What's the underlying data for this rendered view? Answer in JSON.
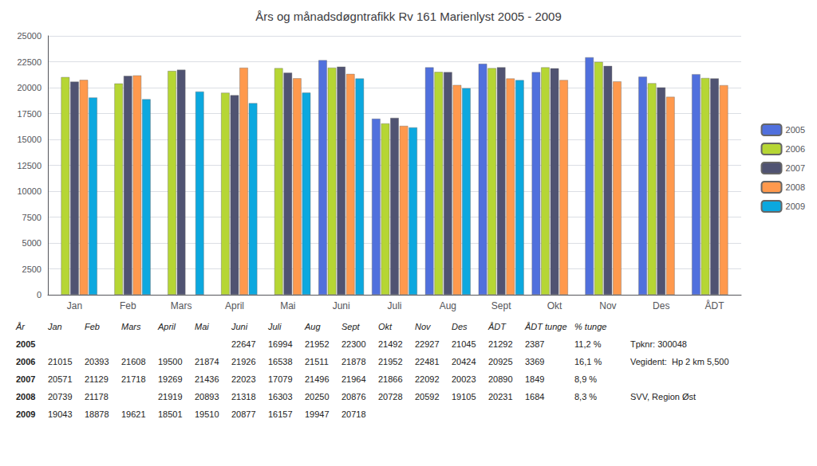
{
  "chart_data": {
    "type": "bar",
    "title": "Års og månadsdøgntrafikk Rv 161 Marienlyst 2005 - 2009",
    "categories": [
      "Jan",
      "Feb",
      "Mars",
      "April",
      "Mai",
      "Juni",
      "Juli",
      "Aug",
      "Sept",
      "Okt",
      "Nov",
      "Des",
      "ÅDT"
    ],
    "series": [
      {
        "name": "2005",
        "values": [
          null,
          null,
          null,
          null,
          null,
          22647,
          16994,
          21952,
          22300,
          21492,
          22927,
          21045,
          21292
        ]
      },
      {
        "name": "2006",
        "values": [
          21015,
          20393,
          21608,
          19500,
          21874,
          21926,
          16538,
          21511,
          21878,
          21952,
          22481,
          20424,
          20925
        ]
      },
      {
        "name": "2007",
        "values": [
          20571,
          21129,
          21718,
          19269,
          21436,
          22023,
          17079,
          21496,
          21964,
          21866,
          22092,
          20023,
          20890
        ]
      },
      {
        "name": "2008",
        "values": [
          20739,
          21178,
          null,
          21919,
          20893,
          21318,
          16303,
          20250,
          20876,
          20728,
          20592,
          19105,
          20231
        ]
      },
      {
        "name": "2009",
        "values": [
          19043,
          18878,
          19621,
          18501,
          19510,
          20877,
          16157,
          19947,
          20718,
          null,
          null,
          null,
          null
        ]
      }
    ],
    "ylim": [
      0,
      25000
    ],
    "yticks": [
      0,
      2500,
      5000,
      7500,
      10000,
      12500,
      15000,
      17500,
      20000,
      22500,
      25000
    ],
    "grid": true,
    "legend": "right",
    "table": {
      "header": [
        "År",
        "Jan",
        "Feb",
        "Mars",
        "April",
        "Mai",
        "Juni",
        "Juli",
        "Aug",
        "Sept",
        "Okt",
        "Nov",
        "Des",
        "ÅDT",
        "ÅDT tunge",
        "% tunge"
      ],
      "rows": [
        [
          "2005",
          null,
          null,
          null,
          null,
          null,
          "22647",
          "16994",
          "21952",
          "22300",
          "21492",
          "22927",
          "21045",
          "21292",
          "2387",
          "11,2 %"
        ],
        [
          "2006",
          "21015",
          "20393",
          "21608",
          "19500",
          "21874",
          "21926",
          "16538",
          "21511",
          "21878",
          "21952",
          "22481",
          "20424",
          "20925",
          "3369",
          "16,1 %"
        ],
        [
          "2007",
          "20571",
          "21129",
          "21718",
          "19269",
          "21436",
          "22023",
          "17079",
          "21496",
          "21964",
          "21866",
          "22092",
          "20023",
          "20890",
          "1849",
          "8,9 %"
        ],
        [
          "2008",
          "20739",
          "21178",
          null,
          "21919",
          "20893",
          "21318",
          "16303",
          "20250",
          "20876",
          "20728",
          "20592",
          "19105",
          "20231",
          "1684",
          "8,3 %"
        ],
        [
          "2009",
          "19043",
          "18878",
          "19621",
          "18501",
          "19510",
          "20877",
          "16157",
          "19947",
          "20718",
          null,
          null,
          null,
          null,
          null,
          null
        ]
      ]
    },
    "annotations": [
      "Tpknr: 300048",
      "Vegident:  Hp 2 km 5,500",
      "SVV, Region Øst"
    ]
  }
}
